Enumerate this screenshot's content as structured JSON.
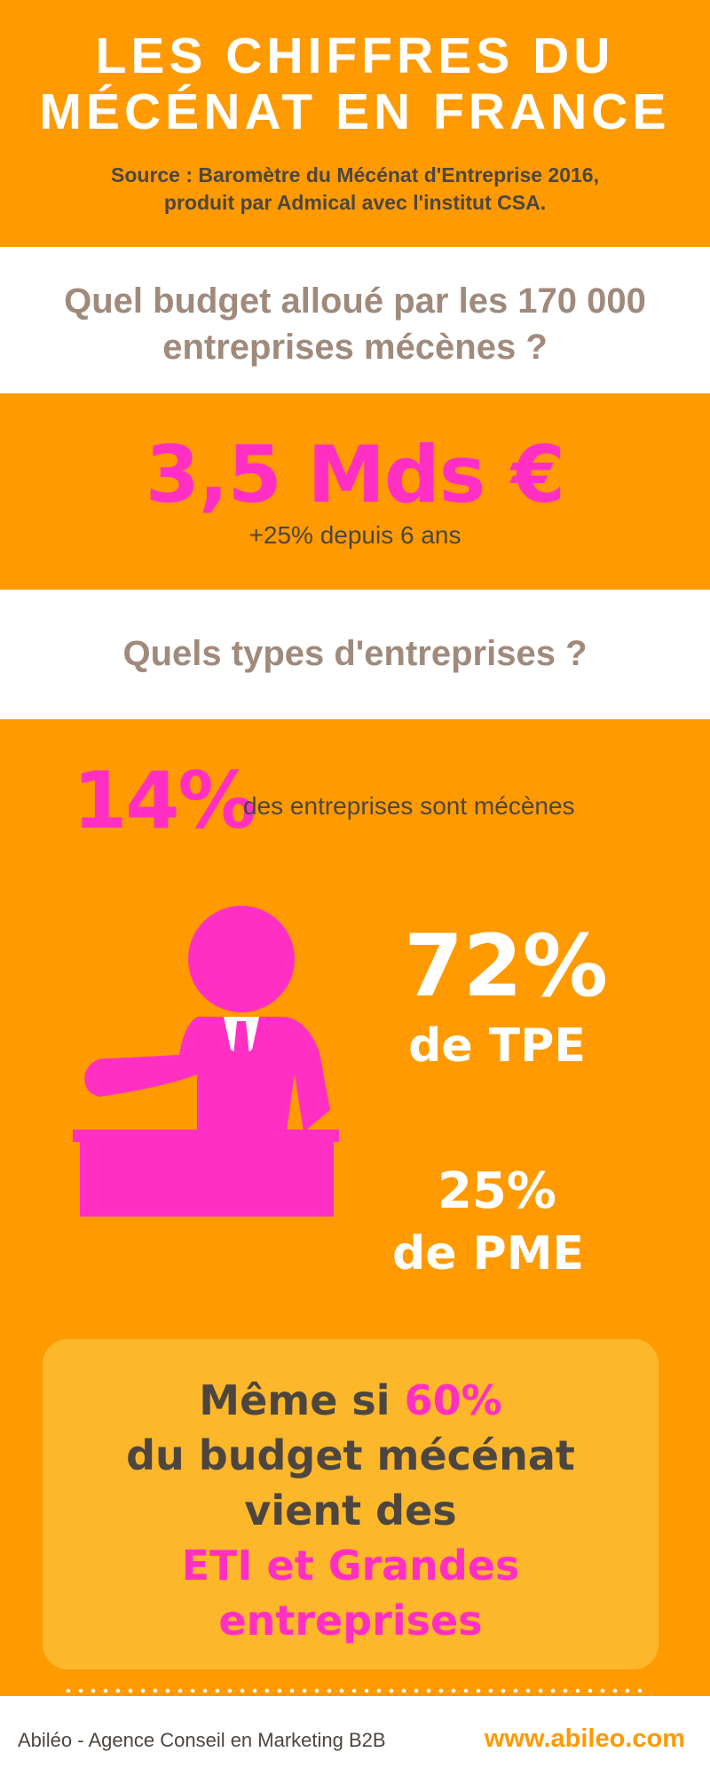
{
  "header": {
    "title_line1": "LES CHIFFRES DU",
    "title_line2": "MÉCÉNAT EN FRANCE",
    "source_line1": "Source : Baromètre du Mécénat d'Entreprise 2016,",
    "source_line2": "produit par Admical avec l'institut CSA."
  },
  "question1": {
    "line1": "Quel budget alloué par les 170 000",
    "line2": "entreprises mécènes ?"
  },
  "budget": {
    "amount": "3,5 Mds €",
    "growth": "+25% depuis 6 ans"
  },
  "question2": {
    "text": "Quels types d'entreprises ?"
  },
  "types": {
    "share_value": "14%",
    "share_label": "des entreprises sont mécènes",
    "tpe_value": "72%",
    "tpe_label": "de TPE",
    "pme_value": "25%",
    "pme_label": "de PME"
  },
  "callout": {
    "line1_prefix": "Même si ",
    "line1_highlight": "60%",
    "line2": "du budget mécénat",
    "line3": "vient des",
    "line4": "ETI et Grandes",
    "line5": "entreprises"
  },
  "footer": {
    "agency": "Abiléo - Agence Conseil en Marketing B2B",
    "website": "www.abileo.com"
  },
  "colors": {
    "orange": "#ff9a00",
    "pink": "#ff2fc3",
    "dark": "#4d4640",
    "taupe": "#a08a7b",
    "callout_bg": "#fdb72b"
  },
  "icons": {
    "figure": "businessman-at-desk-icon"
  }
}
